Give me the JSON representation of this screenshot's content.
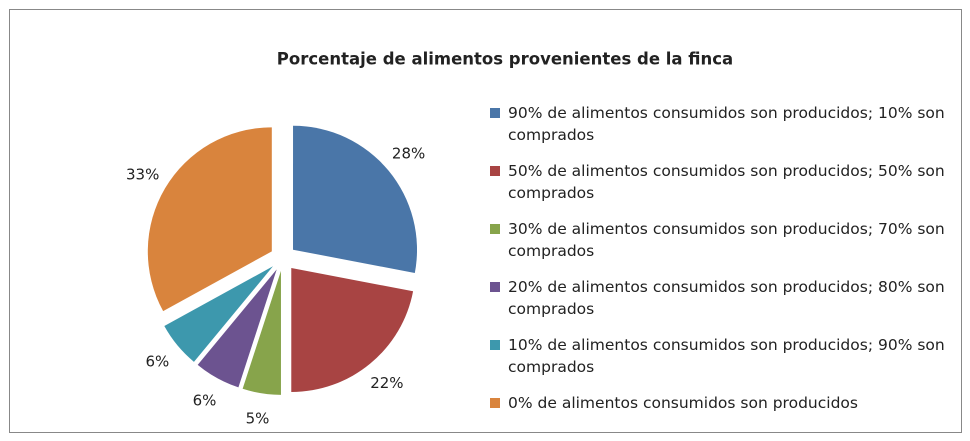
{
  "chart_data": {
    "type": "pie",
    "title": "Porcentaje de alimentos provenientes de  la finca",
    "categories": [
      "90% de alimentos consumidos son producidos; 10% son comprados",
      "50% de alimentos consumidos son producidos; 50% son comprados",
      "30% de alimentos consumidos son producidos; 70% son comprados",
      "20% de alimentos consumidos son producidos; 80% son comprados",
      "10% de alimentos consumidos son producidos; 90% son comprados",
      "0% de alimentos consumidos son producidos"
    ],
    "values": [
      28,
      22,
      5,
      6,
      6,
      33
    ],
    "value_labels": [
      "28%",
      "22%",
      "5%",
      "6%",
      "6%",
      "33%"
    ],
    "colors": [
      "#4a76a8",
      "#a84443",
      "#87a44b",
      "#6c5390",
      "#3d98ad",
      "#d9843d"
    ],
    "legend": "right"
  }
}
